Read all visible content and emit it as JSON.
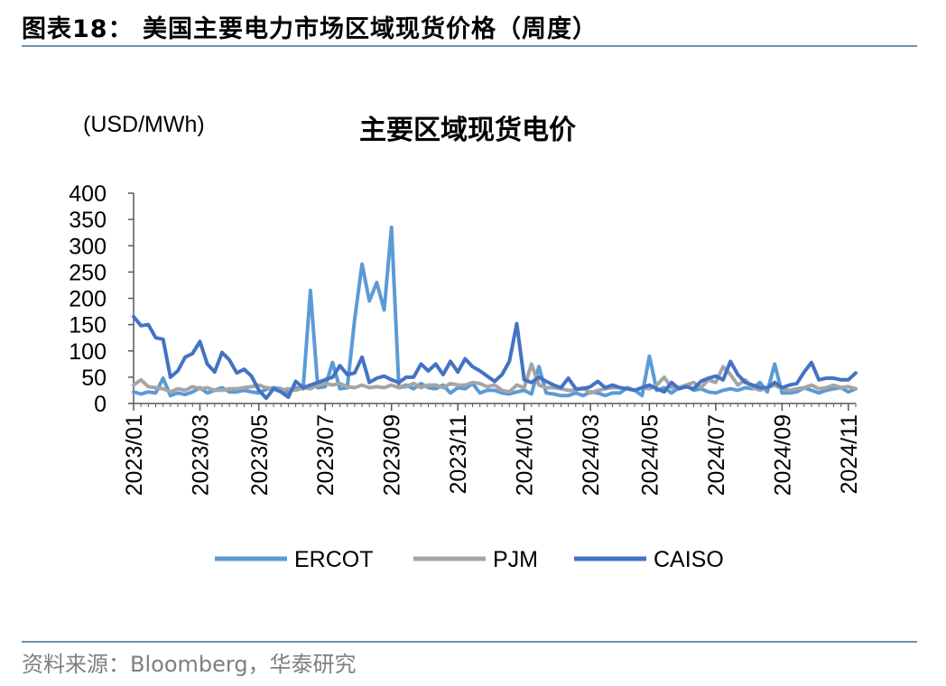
{
  "figure": {
    "title": "图表18：  美国主要电力市场区域现货价格（周度）",
    "source": "资料来源：Bloomberg，华泰研究"
  },
  "chart_data": {
    "type": "line",
    "title": "主要区域现货电价",
    "unit_label": "(USD/MWh)",
    "ylim": [
      0,
      400
    ],
    "yticks": [
      "0",
      "50",
      "100",
      "150",
      "200",
      "250",
      "300",
      "350",
      "400"
    ],
    "xlabels": [
      "2023/01",
      "2023/03",
      "2023/05",
      "2023/07",
      "2023/09",
      "2023/11",
      "2024/01",
      "2024/03",
      "2024/05",
      "2024/07",
      "2024/09",
      "2024/11"
    ],
    "xlabel_weeks": [
      0,
      9,
      17,
      26,
      35,
      44,
      53,
      62,
      70,
      79,
      88,
      97
    ],
    "legend_position": "bottom",
    "grid": false,
    "series": [
      {
        "name": "ERCOT",
        "color": "#5b9bd5",
        "values": [
          22,
          18,
          22,
          20,
          48,
          15,
          20,
          17,
          22,
          30,
          20,
          25,
          30,
          22,
          22,
          25,
          22,
          20,
          27,
          30,
          28,
          20,
          30,
          28,
          215,
          30,
          32,
          78,
          28,
          30,
          160,
          265,
          195,
          230,
          178,
          335,
          30,
          35,
          28,
          38,
          30,
          28,
          35,
          20,
          30,
          28,
          38,
          20,
          25,
          25,
          20,
          18,
          22,
          25,
          18,
          70,
          20,
          18,
          15,
          15,
          20,
          15,
          22,
          20,
          15,
          20,
          20,
          30,
          25,
          15,
          90,
          25,
          30,
          20,
          30,
          35,
          25,
          28,
          22,
          20,
          25,
          28,
          25,
          30,
          28,
          40,
          22,
          75,
          20,
          20,
          22,
          30,
          25,
          20,
          25,
          28,
          30,
          22,
          28
        ]
      },
      {
        "name": "PJM",
        "color": "#a5a5a5",
        "values": [
          35,
          45,
          32,
          30,
          28,
          22,
          28,
          25,
          32,
          28,
          30,
          25,
          25,
          28,
          28,
          30,
          32,
          35,
          30,
          28,
          25,
          28,
          25,
          30,
          28,
          35,
          38,
          35,
          38,
          32,
          30,
          35,
          30,
          32,
          30,
          35,
          30,
          32,
          38,
          30,
          35,
          35,
          30,
          38,
          35,
          35,
          40,
          38,
          32,
          35,
          25,
          22,
          35,
          30,
          75,
          35,
          30,
          30,
          28,
          25,
          25,
          30,
          20,
          25,
          28,
          30,
          30,
          28,
          25,
          30,
          28,
          35,
          50,
          30,
          30,
          35,
          40,
          30,
          45,
          40,
          70,
          55,
          35,
          45,
          30,
          25,
          30,
          35,
          28,
          25,
          28,
          30,
          35,
          28,
          30,
          35,
          30,
          32,
          28
        ]
      },
      {
        "name": "CAISO",
        "color": "#4472c4",
        "values": [
          165,
          148,
          150,
          125,
          122,
          50,
          62,
          88,
          95,
          118,
          75,
          60,
          97,
          83,
          58,
          65,
          52,
          25,
          10,
          28,
          22,
          12,
          42,
          30,
          35,
          40,
          45,
          50,
          72,
          55,
          58,
          88,
          40,
          48,
          52,
          45,
          40,
          50,
          50,
          75,
          62,
          75,
          55,
          80,
          60,
          85,
          70,
          62,
          52,
          42,
          55,
          80,
          152,
          45,
          40,
          50,
          42,
          35,
          30,
          48,
          28,
          28,
          32,
          42,
          30,
          35,
          30,
          28,
          25,
          30,
          35,
          28,
          22,
          40,
          28,
          32,
          28,
          42,
          48,
          52,
          45,
          80,
          55,
          40,
          35,
          30,
          30,
          40,
          30,
          35,
          38,
          60,
          78,
          45,
          48,
          48,
          45,
          45,
          58
        ]
      }
    ]
  }
}
